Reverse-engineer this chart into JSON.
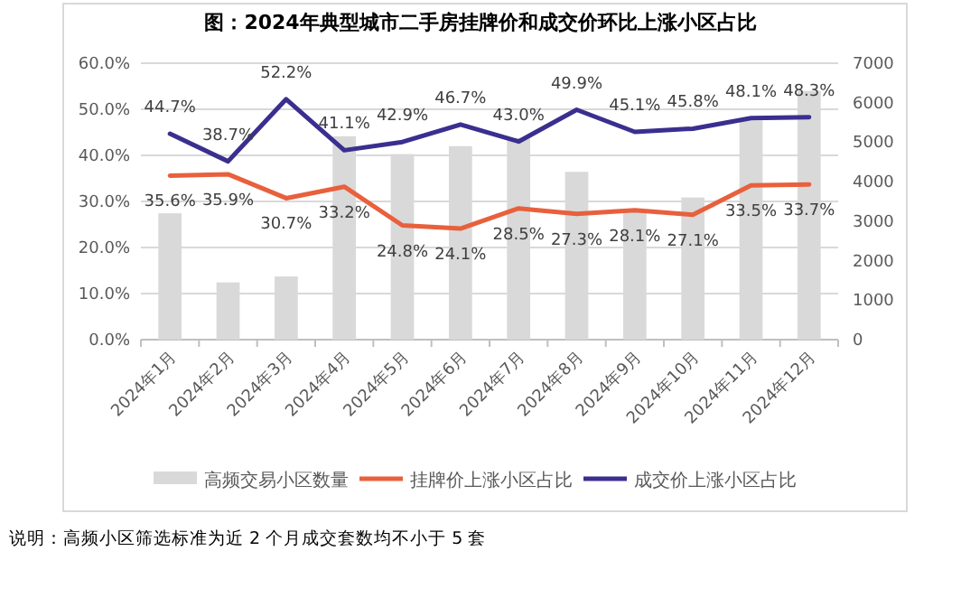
{
  "chart_data": {
    "type": "bar",
    "title": "图：2024年典型城市二手房挂牌价和成交价环比上涨小区占比",
    "categories": [
      "2024年1月",
      "2024年2月",
      "2024年3月",
      "2024年4月",
      "2024年5月",
      "2024年6月",
      "2024年7月",
      "2024年8月",
      "2024年9月",
      "2024年10月",
      "2024年11月",
      "2024年12月"
    ],
    "series": [
      {
        "name": "高频交易小区数量",
        "axis": "y2",
        "color": "#d9d9d9",
        "values": [
          3200,
          1450,
          1600,
          5150,
          4700,
          4900,
          5100,
          4250,
          3300,
          3600,
          5550,
          6300
        ]
      },
      {
        "name": "挂牌价上涨小区占比",
        "type": "line",
        "color": "#e8603c",
        "values": [
          35.6,
          35.9,
          30.7,
          33.2,
          24.8,
          24.1,
          28.5,
          27.3,
          28.1,
          27.1,
          33.5,
          33.7
        ],
        "value_labels": [
          "35.6%",
          "35.9%",
          "30.7%",
          "33.2%",
          "24.8%",
          "24.1%",
          "28.5%",
          "27.3%",
          "28.1%",
          "27.1%",
          "33.5%",
          "33.7%"
        ]
      },
      {
        "name": "成交价上涨小区占比",
        "type": "line",
        "color": "#3a2f8f",
        "values": [
          44.7,
          38.7,
          52.2,
          41.1,
          42.9,
          46.7,
          43.0,
          49.9,
          45.1,
          45.8,
          48.1,
          48.3
        ],
        "value_labels": [
          "44.7%",
          "38.7%",
          "52.2%",
          "41.1%",
          "42.9%",
          "46.7%",
          "43.0%",
          "49.9%",
          "45.1%",
          "45.8%",
          "48.1%",
          "48.3%"
        ]
      }
    ],
    "ylim": [
      0,
      60
    ],
    "yticks": [
      {
        "value": 0,
        "label": "0.0%"
      },
      {
        "value": 10,
        "label": "10.0%"
      },
      {
        "value": 20,
        "label": "20.0%"
      },
      {
        "value": 30,
        "label": "30.0%"
      },
      {
        "value": 40,
        "label": "40.0%"
      },
      {
        "value": 50,
        "label": "50.0%"
      },
      {
        "value": 60,
        "label": "60.0%"
      }
    ],
    "y2lim": [
      0,
      7000
    ],
    "y2ticks": [
      0,
      1000,
      2000,
      3000,
      4000,
      5000,
      6000,
      7000
    ],
    "grid": "y",
    "legend": "bottom",
    "annotations": [
      "说明：高频小区筛选标准为近 2 个月成交套数均不小于 5 套"
    ]
  }
}
